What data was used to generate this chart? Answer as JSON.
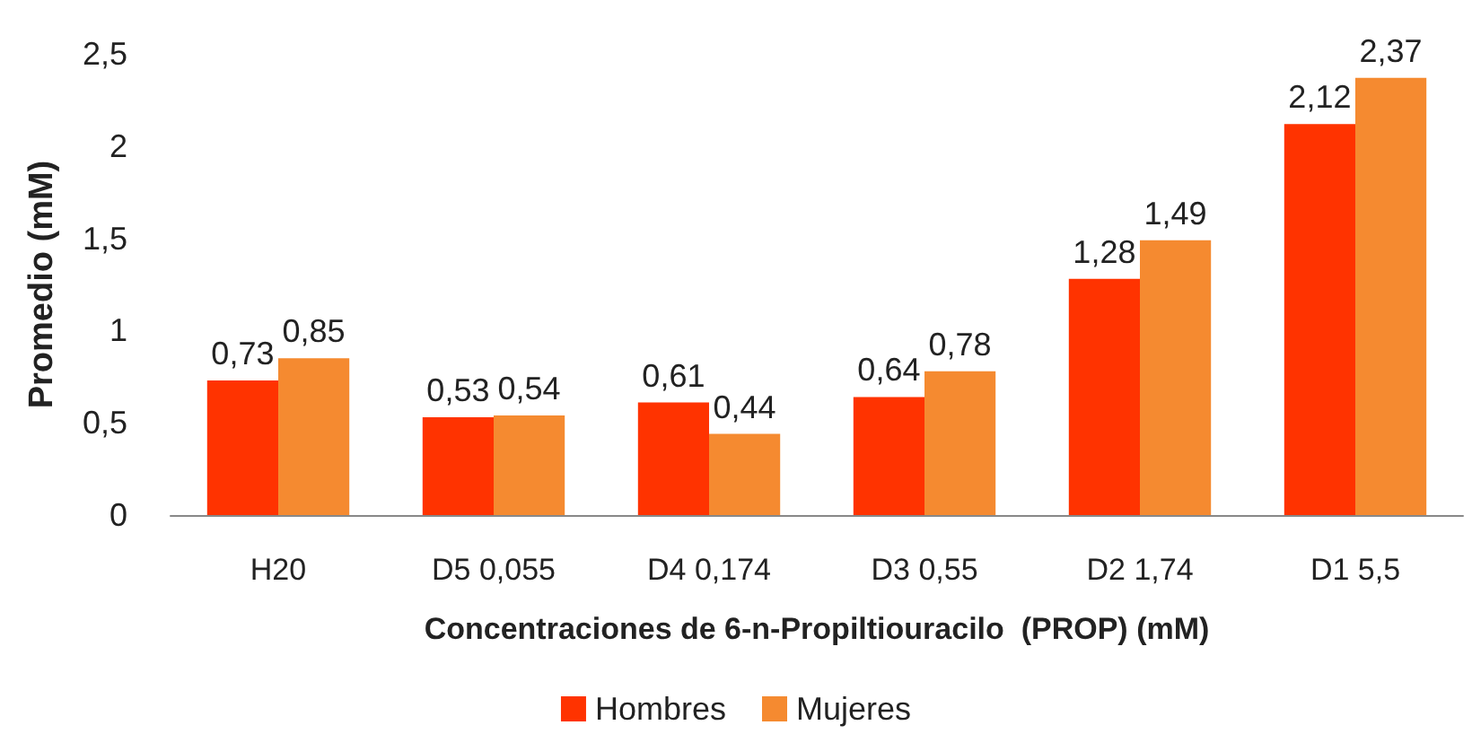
{
  "chart_data": {
    "type": "bar",
    "xlabel": "Concentraciones de 6-n-Propiltiouracilo  (PROP) (mM)",
    "ylabel": "Promedio (mM)",
    "categories": [
      "H20",
      "D5 0,055",
      "D4 0,174",
      "D3 0,55",
      "D2 1,74",
      "D1 5,5"
    ],
    "series": [
      {
        "name": "Hombres",
        "color": "#ff3300",
        "values": [
          0.73,
          0.53,
          0.61,
          0.64,
          1.28,
          2.12
        ],
        "value_labels": [
          "0,73",
          "0,53",
          "0,61",
          "0,64",
          "1,28",
          "2,12"
        ]
      },
      {
        "name": "Mujeres",
        "color": "#f58a30",
        "values": [
          0.85,
          0.54,
          0.44,
          0.78,
          1.49,
          2.37
        ],
        "value_labels": [
          "0,85",
          "0,54",
          "0,44",
          "0,78",
          "1,49",
          "2,37"
        ]
      }
    ],
    "ylim": [
      0,
      2.5
    ],
    "yticks": [
      0,
      {
        "value": 0.5,
        "label": "0,5"
      },
      1,
      {
        "value": 1.5,
        "label": "1,5"
      },
      2,
      {
        "value": 2.5,
        "label": "2,5"
      }
    ],
    "grid": false,
    "legend": "bottom"
  }
}
